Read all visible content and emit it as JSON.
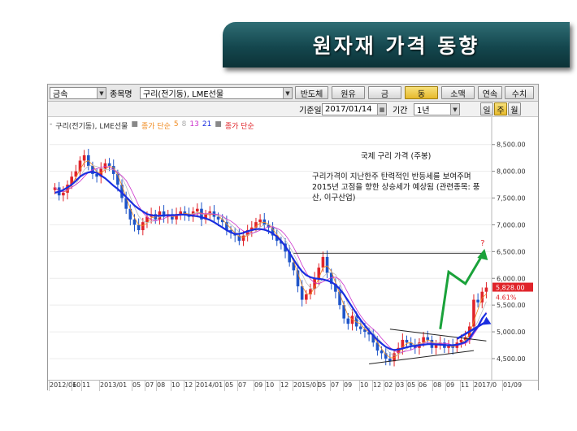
{
  "slide": {
    "title": "원자재 가격 동향"
  },
  "toolbar": {
    "category_select": "금속",
    "item_label": "종목명",
    "item_select": "구리(전기동), LME선물",
    "buttons": [
      {
        "label": "반도체",
        "active": false
      },
      {
        "label": "원유",
        "active": false
      },
      {
        "label": "금",
        "active": false
      },
      {
        "label": "동",
        "active": true
      },
      {
        "label": "소맥",
        "active": false
      },
      {
        "label": "연속",
        "active": false
      },
      {
        "label": "수치",
        "active": false
      }
    ],
    "date_label": "기준일",
    "date_value": "2017/01/14",
    "period_label": "기간",
    "period_value": "1년",
    "interval_buttons": [
      {
        "label": "일",
        "active": false
      },
      {
        "label": "주",
        "active": true
      },
      {
        "label": "월",
        "active": false
      }
    ]
  },
  "legend": {
    "series_name": "구리(전기동), LME선물",
    "ma_label": "종가 단순",
    "ma_periods": [
      "5",
      "8",
      "13",
      "21"
    ],
    "ma2_label": "종가 단순"
  },
  "annotation": {
    "title": "국제 구리 가격 (주봉)",
    "body": "구리가격이 지난한주 탄력적인 반등세를 보여주며 2015년 고점을 향한 상승세가 예상됨 (관련종목: 풍산, 이구산업)",
    "question_mark": "?"
  },
  "price_label": {
    "value": "5,828.00",
    "change": "4.61%"
  },
  "colors": {
    "banner": "#14474e",
    "up": "#e0242a",
    "down": "#1f55c9",
    "ma_main": "#1a2ee0",
    "ma5": "#f08a1e",
    "ma8": "#bbbbbb",
    "ma13": "#cc33cc",
    "arrow": "#1aa23a",
    "price_tag": "#e0242a"
  },
  "chart_data": {
    "type": "candlestick",
    "title": "국제 구리 가격 (주봉)",
    "ylim": [
      4150,
      8800
    ],
    "yticks": [
      "8,500.00",
      "8,000.00",
      "7,500.00",
      "7,000.00",
      "6,500.00",
      "6,000.00",
      "5,500.00",
      "5,000.00",
      "4,500.00"
    ],
    "xticks": [
      "2012/06",
      "10",
      "11",
      "2013/01",
      "05",
      "07",
      "08",
      "10",
      "12",
      "2014/01",
      "05",
      "07",
      "09",
      "10",
      "12",
      "2015/01",
      "05",
      "07",
      "09",
      "10",
      "12",
      "02",
      "03",
      "05",
      "06",
      "08",
      "09",
      "11",
      "2017/0",
      "01/09"
    ],
    "close_series": [
      7700,
      7550,
      7600,
      7750,
      7900,
      8000,
      8200,
      8300,
      8100,
      7950,
      7900,
      8050,
      8150,
      8100,
      7950,
      7750,
      7500,
      7300,
      7100,
      7000,
      6900,
      7050,
      7150,
      7200,
      7100,
      7250,
      7150,
      7200,
      7100,
      7200,
      7250,
      7200,
      7150,
      7250,
      7300,
      7100,
      7200,
      7250,
      7150,
      7100,
      7050,
      6900,
      6850,
      6800,
      6700,
      6800,
      6900,
      6950,
      7050,
      7100,
      7000,
      6950,
      6800,
      6700,
      6650,
      6500,
      6300,
      6150,
      5850,
      5600,
      5700,
      5800,
      6000,
      6200,
      6400,
      6100,
      5900,
      5750,
      5500,
      5250,
      5150,
      5300,
      5100,
      5050,
      5000,
      4950,
      4800,
      4650,
      4600,
      4500,
      4450,
      4600,
      4700,
      4850,
      4800,
      4750,
      4700,
      4800,
      4900,
      4850,
      4700,
      4750,
      4800,
      4700,
      4750,
      4700,
      4800,
      4850,
      4900,
      5100,
      5600,
      5550,
      5750,
      5828
    ],
    "ma_main_series": [
      7600,
      7620,
      7650,
      7700,
      7750,
      7820,
      7900,
      7950,
      7980,
      7990,
      7970,
      7920,
      7870,
      7800,
      7730,
      7670,
      7600,
      7520,
      7440,
      7360,
      7300,
      7250,
      7200,
      7180,
      7170,
      7170,
      7175,
      7180,
      7180,
      7185,
      7190,
      7190,
      7180,
      7170,
      7160,
      7140,
      7120,
      7090,
      7050,
      7000,
      6950,
      6900,
      6860,
      6830,
      6830,
      6850,
      6880,
      6900,
      6920,
      6920,
      6910,
      6880,
      6840,
      6780,
      6700,
      6600,
      6480,
      6350,
      6230,
      6130,
      6060,
      6020,
      6000,
      5990,
      5980,
      5960,
      5930,
      5880,
      5800,
      5700,
      5580,
      5460,
      5340,
      5220,
      5120,
      5020,
      4930,
      4850,
      4780,
      4720,
      4680,
      4660,
      4670,
      4690,
      4710,
      4730,
      4740,
      4750,
      4760,
      4770,
      4770,
      4765,
      4760,
      4755,
      4750,
      4750,
      4760,
      4780,
      4810,
      4880,
      5000,
      5100,
      5250,
      5350
    ]
  }
}
